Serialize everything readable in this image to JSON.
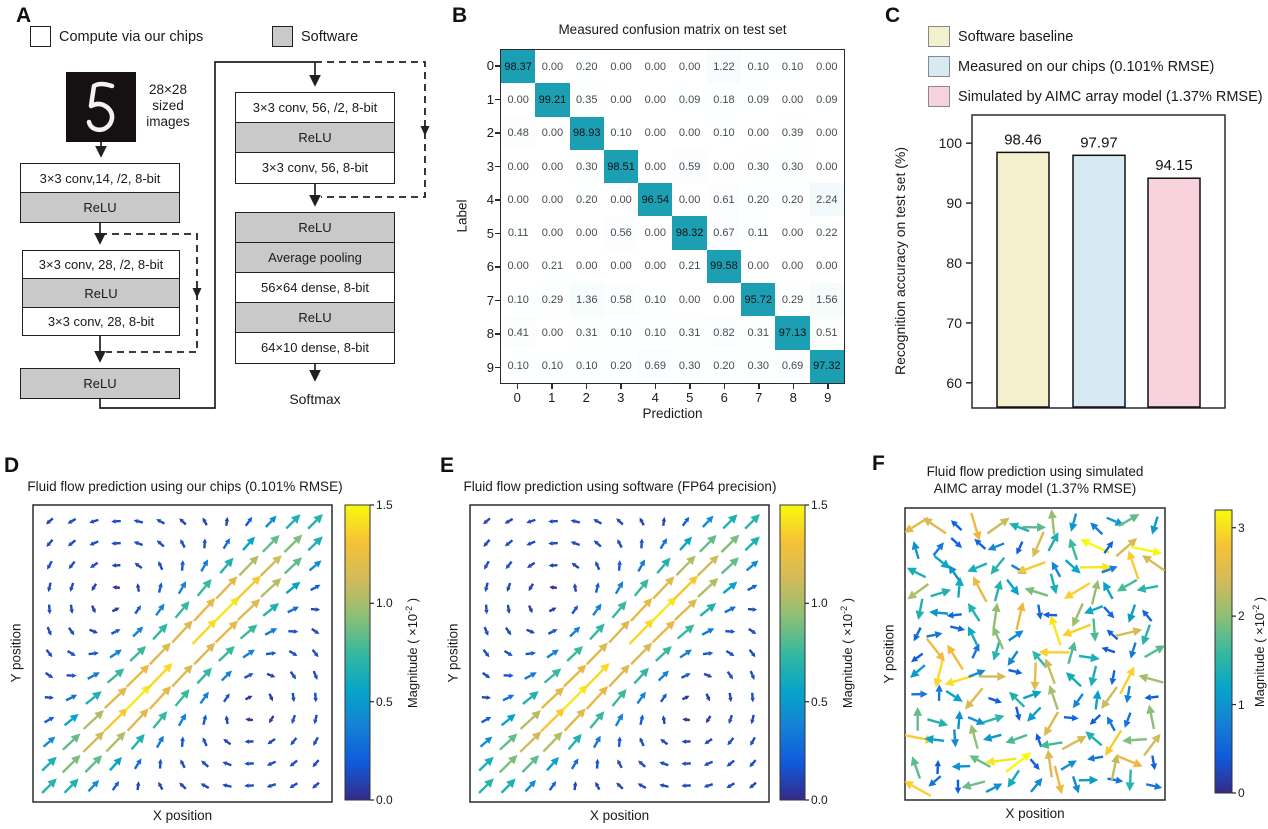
{
  "panel_labels": {
    "a": "A",
    "b": "B",
    "c": "C",
    "d": "D",
    "e": "E",
    "f": "F"
  },
  "panel_a": {
    "legend": [
      {
        "label": "Compute via our chips",
        "type": "chip"
      },
      {
        "label": "Software",
        "type": "software"
      }
    ],
    "input_caption_lines": [
      "28×28",
      "sized",
      "images"
    ],
    "col1_block1": [
      {
        "label": "3×3 conv,14, /2, 8-bit",
        "type": "chip"
      },
      {
        "label": "ReLU",
        "type": "software"
      }
    ],
    "col1_block2": [
      {
        "label": "3×3 conv, 28, /2, 8-bit",
        "type": "chip"
      },
      {
        "label": "ReLU",
        "type": "software"
      },
      {
        "label": "3×3 conv, 28, 8-bit",
        "type": "chip"
      }
    ],
    "col1_block3": [
      {
        "label": "ReLU",
        "type": "software"
      }
    ],
    "col2_block1": [
      {
        "label": "3×3 conv, 56, /2, 8-bit",
        "type": "chip"
      },
      {
        "label": "ReLU",
        "type": "software"
      },
      {
        "label": "3×3 conv, 56, 8-bit",
        "type": "chip"
      }
    ],
    "col2_block2": [
      {
        "label": "ReLU",
        "type": "software"
      },
      {
        "label": "Average pooling",
        "type": "software"
      },
      {
        "label": "56×64 dense, 8-bit",
        "type": "chip"
      },
      {
        "label": "ReLU",
        "type": "software"
      },
      {
        "label": "64×10 dense, 8-bit",
        "type": "chip"
      }
    ],
    "output_label": "Softmax",
    "colors": {
      "chip_fill": "#ffffff",
      "software_fill": "#c9c9c9",
      "border": "#231f20"
    }
  },
  "quiver_colormap": [
    [
      0.0,
      "#352a87"
    ],
    [
      0.13,
      "#0f5cdd"
    ],
    [
      0.25,
      "#1481d6"
    ],
    [
      0.38,
      "#06a7c6"
    ],
    [
      0.5,
      "#38b99e"
    ],
    [
      0.63,
      "#92bf73"
    ],
    [
      0.75,
      "#d3bb59"
    ],
    [
      0.84,
      "#f2b73f"
    ],
    [
      0.93,
      "#fcd22a"
    ],
    [
      1.0,
      "#f8fa0d"
    ]
  ],
  "chart_data": [
    {
      "id": "confusion_matrix",
      "panel": "B",
      "type": "heatmap",
      "title": "Measured confusion matrix on test set",
      "xlabel": "Prediction",
      "ylabel": "Label",
      "x_ticks": [
        "0",
        "1",
        "2",
        "3",
        "4",
        "5",
        "6",
        "7",
        "8",
        "9"
      ],
      "y_ticks": [
        "0",
        "1",
        "2",
        "3",
        "4",
        "5",
        "6",
        "7",
        "8",
        "9"
      ],
      "values": [
        [
          98.37,
          0.0,
          0.2,
          0.0,
          0.0,
          0.0,
          1.22,
          0.1,
          0.1,
          0.0
        ],
        [
          0.0,
          99.21,
          0.35,
          0.0,
          0.0,
          0.09,
          0.18,
          0.09,
          0.0,
          0.09
        ],
        [
          0.48,
          0.0,
          98.93,
          0.1,
          0.0,
          0.0,
          0.1,
          0.0,
          0.39,
          0.0
        ],
        [
          0.0,
          0.0,
          0.3,
          98.51,
          0.0,
          0.59,
          0.0,
          0.3,
          0.3,
          0.0
        ],
        [
          0.0,
          0.0,
          0.2,
          0.0,
          96.54,
          0.0,
          0.61,
          0.2,
          0.2,
          2.24
        ],
        [
          0.11,
          0.0,
          0.0,
          0.56,
          0.0,
          98.32,
          0.67,
          0.11,
          0.0,
          0.22
        ],
        [
          0.0,
          0.21,
          0.0,
          0.0,
          0.0,
          0.21,
          99.58,
          0.0,
          0.0,
          0.0
        ],
        [
          0.1,
          0.29,
          1.36,
          0.58,
          0.1,
          0.0,
          0.0,
          95.72,
          0.29,
          1.56
        ],
        [
          0.41,
          0.0,
          0.31,
          0.1,
          0.1,
          0.31,
          0.82,
          0.31,
          97.13,
          0.51
        ],
        [
          0.1,
          0.1,
          0.1,
          0.2,
          0.69,
          0.3,
          0.2,
          0.3,
          0.69,
          97.32
        ]
      ],
      "diagonal_color": "#1d9fb3"
    },
    {
      "id": "accuracy_bars",
      "panel": "C",
      "type": "bar",
      "legend": [
        "Software baseline",
        "Measured on our chips (0.101% RMSE)",
        "Simulated by AIMC array model (1.37% RMSE)"
      ],
      "legend_colors": [
        "#f4f0cd",
        "#d7eaf4",
        "#f8d3de"
      ],
      "values": [
        98.46,
        97.97,
        94.15
      ],
      "bar_colors": [
        "#f4f0cd",
        "#d7eaf4",
        "#f8d3de"
      ],
      "ylabel": "Recognition accuracy on test set (%)",
      "ylim": [
        55.8,
        104.7
      ],
      "yticks": [
        60,
        70,
        80,
        90,
        100
      ]
    },
    {
      "id": "quiver_chips",
      "panel": "D",
      "type": "quiver",
      "title": "Fluid flow prediction using our chips (0.101% RMSE)",
      "xlabel": "X position",
      "ylabel": "Y position",
      "colorbar": {
        "label_pre": "Magnitude ( ×10",
        "label_exp": "-2",
        "label_post": " )",
        "ticks": [
          0.0,
          0.5,
          1.0,
          1.5
        ],
        "tick_decimals": 1,
        "vmax": 1.5
      },
      "field": {
        "model": "twin_vortex",
        "grid": 13,
        "peak": 1.45,
        "vortices": [
          {
            "x": 0.3,
            "y": 0.66,
            "omega": 1,
            "sigma": 0.24
          },
          {
            "x": 0.7,
            "y": 0.34,
            "omega": -1,
            "sigma": 0.24
          }
        ],
        "jet": {
          "amp": 1.6,
          "width": 0.085,
          "spread": 0.35,
          "center_dip": 0.3,
          "dip_width": 0.1
        },
        "mask": {
          "x": 0.5,
          "y": 0.5,
          "r": 0.055
        }
      }
    },
    {
      "id": "quiver_software",
      "panel": "E",
      "type": "quiver",
      "title": "Fluid flow prediction using software (FP64 precision)",
      "xlabel": "X position",
      "ylabel": "Y position",
      "colorbar": {
        "label_pre": "Magnitude ( ×10",
        "label_exp": "-2",
        "label_post": " )",
        "ticks": [
          0.0,
          0.5,
          1.0,
          1.5
        ],
        "tick_decimals": 1,
        "vmax": 1.5
      },
      "field": {
        "model": "twin_vortex",
        "grid": 13,
        "peak": 1.45,
        "vortices": [
          {
            "x": 0.3,
            "y": 0.66,
            "omega": 1,
            "sigma": 0.24
          },
          {
            "x": 0.7,
            "y": 0.34,
            "omega": -1,
            "sigma": 0.24
          }
        ],
        "jet": {
          "amp": 1.6,
          "width": 0.085,
          "spread": 0.35,
          "center_dip": 0.3,
          "dip_width": 0.1
        },
        "mask": {
          "x": 0.5,
          "y": 0.5,
          "r": 0.055
        }
      }
    },
    {
      "id": "quiver_aimc",
      "panel": "F",
      "type": "quiver",
      "title_lines": [
        "Fluid flow prediction using simulated",
        "AIMC array model (1.37% RMSE)"
      ],
      "xlabel": "X position",
      "ylabel": "Y position",
      "colorbar": {
        "label_pre": "Magnitude ( ×10",
        "label_exp": "-2",
        "label_post": " )",
        "ticks": [
          0,
          1,
          2,
          3
        ],
        "tick_decimals": 0,
        "vmax": 3.2
      },
      "field": {
        "model": "random",
        "grid": 13,
        "seed": 12,
        "mag_min": 0.4,
        "mag_max": 3.2,
        "jitter": 0.018,
        "mask": {
          "x": 0.48,
          "y": 0.52,
          "r": 0.05
        }
      }
    }
  ]
}
